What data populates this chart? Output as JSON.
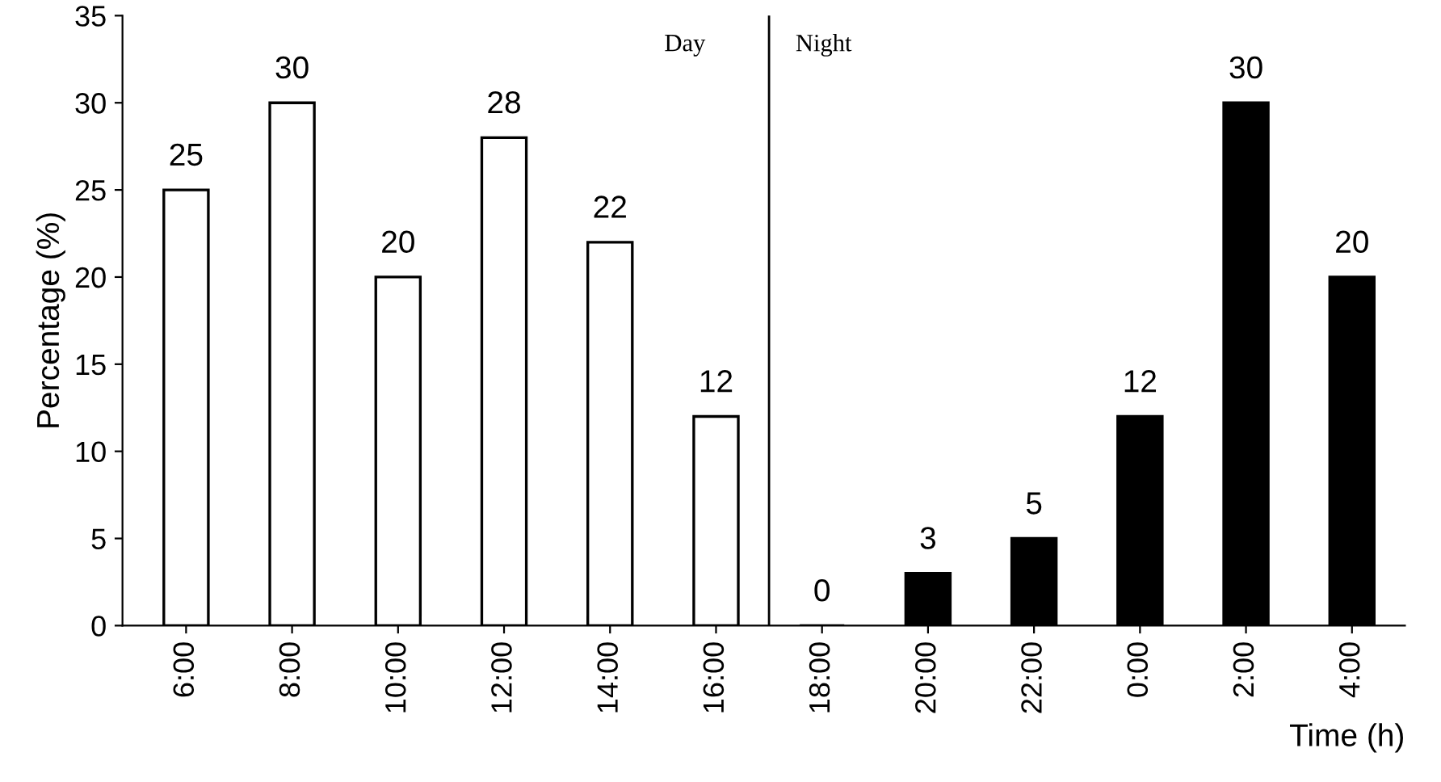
{
  "chart_data": {
    "type": "bar",
    "xlabel": "Time (h)",
    "ylabel": "Percentage (%)",
    "categories": [
      "6:00",
      "8:00",
      "10:00",
      "12:00",
      "14:00",
      "16:00",
      "18:00",
      "20:00",
      "22:00",
      "0:00",
      "2:00",
      "4:00"
    ],
    "values": [
      25,
      30,
      20,
      28,
      22,
      12,
      0,
      3,
      5,
      12,
      30,
      20
    ],
    "colors": [
      "#ffffff",
      "#ffffff",
      "#ffffff",
      "#ffffff",
      "#ffffff",
      "#ffffff",
      "#000000",
      "#000000",
      "#000000",
      "#000000",
      "#000000",
      "#000000"
    ],
    "ylim": [
      0,
      35
    ],
    "yticks": [
      0,
      5,
      10,
      15,
      20,
      25,
      30,
      35
    ],
    "annotations": [
      "Day",
      "Night"
    ],
    "data_labels": true,
    "grid": false,
    "legend": false
  }
}
